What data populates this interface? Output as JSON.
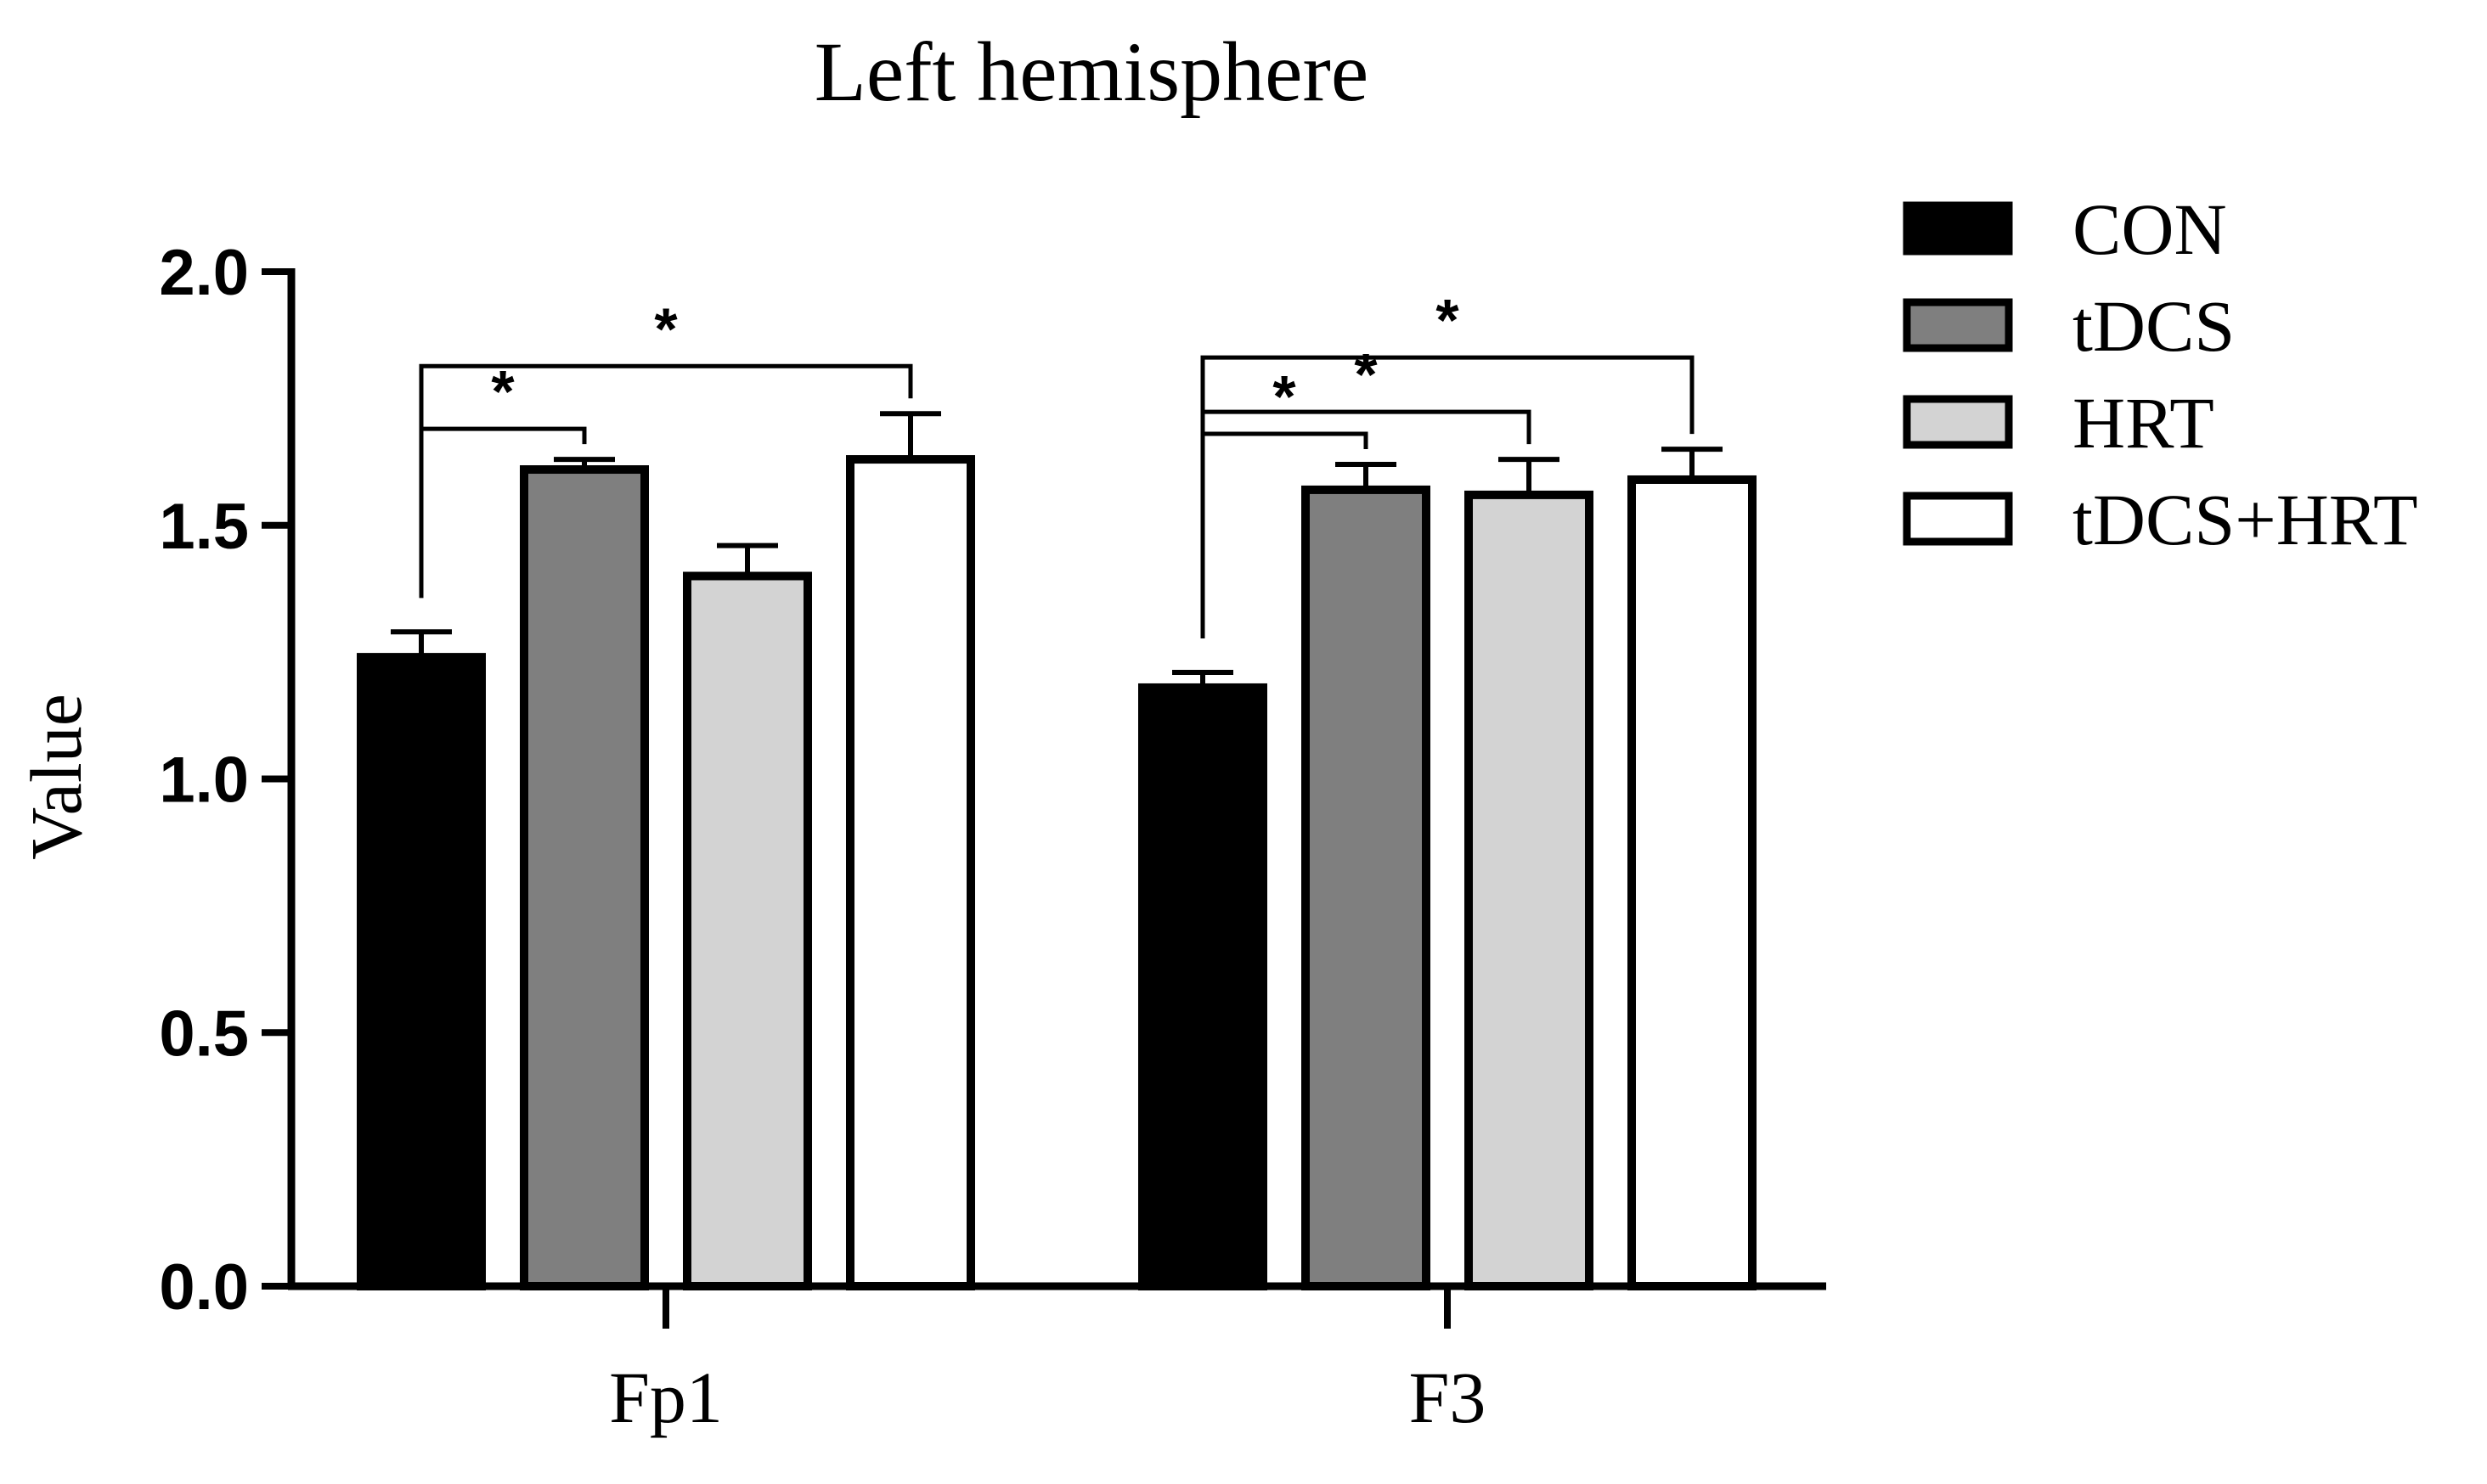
{
  "chart_data": {
    "type": "bar",
    "title": "Left hemisphere",
    "xlabel": "",
    "ylabel": "Value",
    "ylim": [
      0,
      2.0
    ],
    "yticks": [
      "0.0",
      "0.5",
      "1.0",
      "1.5",
      "2.0"
    ],
    "grid": false,
    "legend_position": "right",
    "categories": [
      "Fp1",
      "F3"
    ],
    "series": [
      {
        "name": "CON",
        "color": "#000000",
        "values": [
          1.24,
          1.18
        ],
        "errors": [
          0.05,
          0.03
        ]
      },
      {
        "name": "tDCS",
        "color": "#7f7f7f",
        "values": [
          1.61,
          1.57
        ],
        "errors": [
          0.02,
          0.05
        ]
      },
      {
        "name": "HRT",
        "color": "#d3d3d3",
        "values": [
          1.4,
          1.56
        ],
        "errors": [
          0.06,
          0.07
        ]
      },
      {
        "name": "tDCS+HRT",
        "color": "#ffffff",
        "values": [
          1.63,
          1.59
        ],
        "errors": [
          0.09,
          0.06
        ]
      }
    ],
    "significance": [
      {
        "category": "Fp1",
        "from": "CON",
        "to": "tDCS",
        "label": "*"
      },
      {
        "category": "Fp1",
        "from": "CON",
        "to": "tDCS+HRT",
        "label": "*"
      },
      {
        "category": "F3",
        "from": "CON",
        "to": "tDCS",
        "label": "*"
      },
      {
        "category": "F3",
        "from": "CON",
        "to": "HRT",
        "label": "*"
      },
      {
        "category": "F3",
        "from": "CON",
        "to": "tDCS+HRT",
        "label": "*"
      }
    ]
  }
}
